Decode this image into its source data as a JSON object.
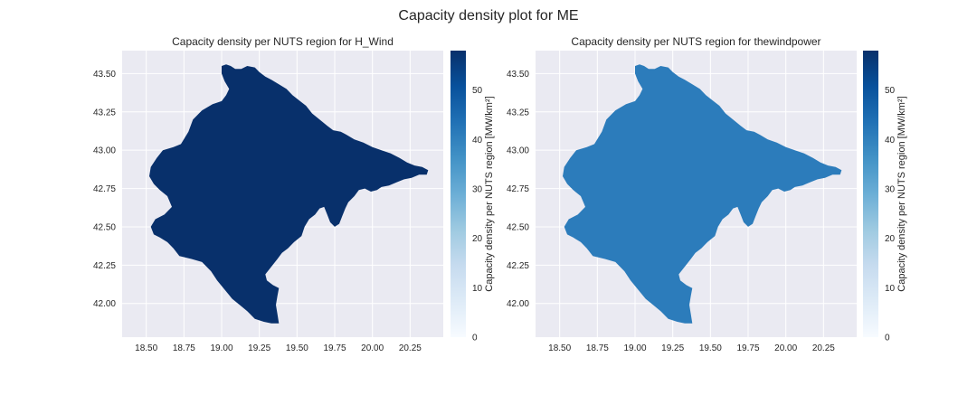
{
  "figure": {
    "title": "Capacity density plot for ME"
  },
  "chart_data": [
    {
      "type": "choropleth",
      "title": "Capacity density per NUTS region for H_Wind",
      "xlim": [
        18.34,
        20.47
      ],
      "ylim": [
        41.78,
        43.65
      ],
      "xticks": [
        18.5,
        18.75,
        19.0,
        19.25,
        19.5,
        19.75,
        20.0,
        20.25
      ],
      "yticks": [
        42.0,
        42.25,
        42.5,
        42.75,
        43.0,
        43.25,
        43.5
      ],
      "grid": true,
      "regions": [
        {
          "name": "ME",
          "value": 58
        }
      ],
      "colorbar": {
        "cmap": "Blues",
        "label": "Capacity density per NUTS region [MW/km²]",
        "vmin": 0,
        "vmax": 58,
        "ticks": [
          0,
          10,
          20,
          30,
          40,
          50
        ]
      }
    },
    {
      "type": "choropleth",
      "title": "Capacity density per NUTS region for thewindpower",
      "xlim": [
        18.34,
        20.47
      ],
      "ylim": [
        41.78,
        43.65
      ],
      "xticks": [
        18.5,
        18.75,
        19.0,
        19.25,
        19.5,
        19.75,
        20.0,
        20.25
      ],
      "yticks": [
        42.0,
        42.25,
        42.5,
        42.75,
        43.0,
        43.25,
        43.5
      ],
      "grid": true,
      "regions": [
        {
          "name": "ME",
          "value": 41
        }
      ],
      "colorbar": {
        "cmap": "Blues",
        "label": "Capacity density per NUTS region [MW/km²]",
        "vmin": 0,
        "vmax": 58,
        "ticks": [
          0,
          10,
          20,
          30,
          40,
          50
        ]
      }
    }
  ]
}
